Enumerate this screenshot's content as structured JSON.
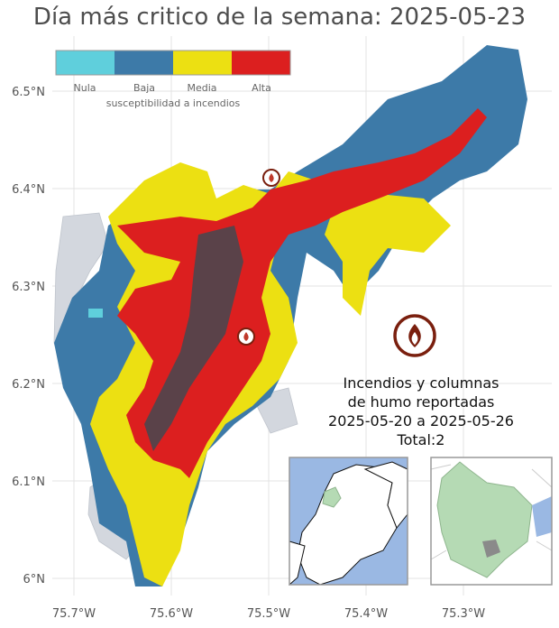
{
  "title": "Día más critico de la semana: 2025-05-23",
  "axes": {
    "lat_ticks": [
      "6.5°N",
      "6.4°N",
      "6.3°N",
      "6.2°N",
      "6.1°N",
      "6°N"
    ],
    "lon_ticks": [
      "75.7°W",
      "75.6°W",
      "75.5°W",
      "75.4°W",
      "75.3°W"
    ]
  },
  "legend": {
    "title": "susceptibilidad a incendios",
    "items": [
      {
        "label": "Nula",
        "color": "#5fcfdc"
      },
      {
        "label": "Baja",
        "color": "#3d7aa8"
      },
      {
        "label": "Media",
        "color": "#ece012"
      },
      {
        "label": "Alta",
        "color": "#dc1f1f"
      }
    ]
  },
  "info": {
    "line1": "Incendios y columnas",
    "line2": "de humo reportadas",
    "line3": "2025-05-20 a 2025-05-26",
    "line4": "Total:2"
  },
  "colors": {
    "background_region": "#d3d7de",
    "sea": "#9ab8e3",
    "highlight_region": "#b5dab4",
    "fire_icon": "#7a1f0e",
    "urban_dark": "#2f4f58"
  },
  "icons": [
    "fire-icon"
  ]
}
